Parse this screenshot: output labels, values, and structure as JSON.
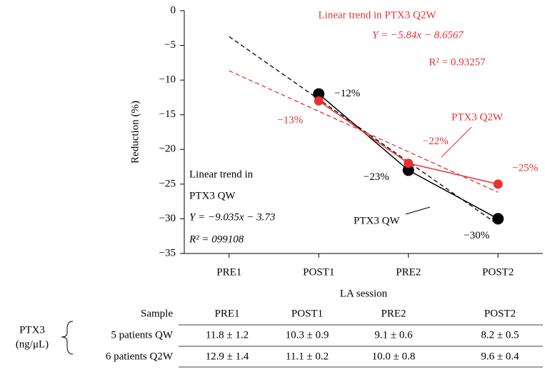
{
  "chart_data": {
    "type": "line",
    "y_label": "Reduction (%)",
    "x_label": "LA session",
    "categories": [
      "PRE1",
      "POST1",
      "PRE2",
      "POST2"
    ],
    "ylim": [
      -35,
      0
    ],
    "yticks": [
      0,
      {
        "value": -5,
        "label": "−5"
      },
      {
        "value": -10,
        "label": "−10"
      },
      {
        "value": -15,
        "label": "−15"
      },
      {
        "value": -20,
        "label": "−20"
      },
      {
        "value": -25,
        "label": "−25"
      },
      {
        "value": -30,
        "label": "−30"
      },
      {
        "value": -35,
        "label": "−35"
      }
    ],
    "series": [
      {
        "name": "PTX3 QW",
        "color": "#000000",
        "values": [
          null,
          -12,
          -23,
          -30
        ],
        "value_labels": [
          null,
          "−12%",
          "−23%",
          "−30%"
        ],
        "trend": {
          "slope": -9.035,
          "intercept": -3.73,
          "title": "Linear trend in",
          "subtitle": "PTX3 QW",
          "equation": "Y = −9.035x − 3.73",
          "r2": "R² = 099108"
        }
      },
      {
        "name": "PTX3 Q2W",
        "color": "#e8312f",
        "values": [
          null,
          -13,
          -22,
          -25
        ],
        "value_labels": [
          null,
          "−13%",
          "−22%",
          "−25%"
        ],
        "trend": {
          "slope": -5.84,
          "intercept": -8.6567,
          "title": "Linear trend in PTX3 Q2W",
          "equation": "Y = −5.84x − 8.6567",
          "r2": "R² = 0.93257"
        }
      }
    ]
  },
  "table": {
    "group_label": [
      "PTX3",
      "(ng/μL)"
    ],
    "header": [
      "Sample",
      "PRE1",
      "POST1",
      "PRE2",
      "POST2"
    ],
    "rows": [
      [
        "5 patients QW",
        "11.8 ± 1.2",
        "10.3 ± 0.9",
        "9.1 ± 0.6",
        "8.2 ± 0.5"
      ],
      [
        "6 patients Q2W",
        "12.9 ± 1.4",
        "11.1 ± 0.2",
        "10.0 ± 0.8",
        "9.6 ± 0.4"
      ]
    ]
  }
}
